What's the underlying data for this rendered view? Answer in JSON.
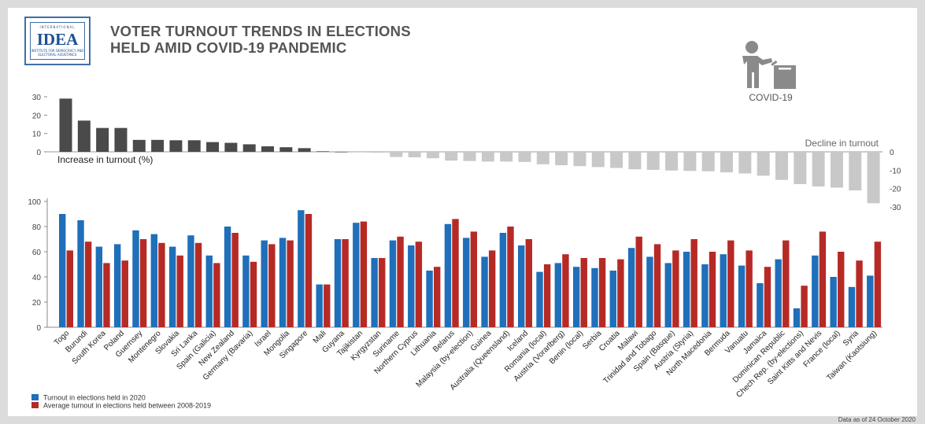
{
  "logo": {
    "top_text": "INTERNATIONAL",
    "main_text": "IDEA",
    "bottom_text": "INSTITUTE FOR DEMOCRACY AND ELECTORAL ASSISTANCE"
  },
  "title_line1": "VOTER TURNOUT TRENDS IN ELECTIONS",
  "title_line2": "HELD AMID COVID-19 PANDEMIC",
  "covid_label": "COVID-19",
  "icon": "voter-ballot-box-icon",
  "footnote": "Data as of 24 October 2020",
  "colors": {
    "turnout_2020": "#1f6fba",
    "average": "#b62a26",
    "increase": "#4a4a4a",
    "decline": "#c8c8c8"
  },
  "chart_data": [
    {
      "type": "bar",
      "label_increase": "Increase in turnout (%)",
      "label_decline": "Decline in turnout",
      "left_ticks": [
        "30",
        "20",
        "10",
        "0"
      ],
      "right_ticks": [
        "0",
        "-10",
        "-20",
        "-30"
      ],
      "ylim": [
        -30,
        30
      ],
      "categories": [
        "Togo",
        "Burundi",
        "South Korea",
        "Poland",
        "Guernsey",
        "Montenegro",
        "Slovakia",
        "Sri Lanka",
        "Spain (Galicia)",
        "New Zealand",
        "Germany (Bavaria)",
        "Israel",
        "Mongolia",
        "Singapore",
        "Mali",
        "Guyana",
        "Tajikistan",
        "Kyrgyzstan",
        "Suriname",
        "Northern Cyprus",
        "Lithuania",
        "Belarus",
        "Malaysia (by-election)",
        "Guinea",
        "Australia (Queensland)",
        "Iceland",
        "Romania (local)",
        "Austria (Vorarlberg)",
        "Benin (local)",
        "Serbia",
        "Croatia",
        "Malawi",
        "Trinidad and Tobago",
        "Spain (Basque)",
        "Austria (Styria)",
        "North Macedonia",
        "Bermuda",
        "Vanuatu",
        "Jamaica",
        "Dominican Republic",
        "Chech Rep. (by-elections)",
        "Saint Kitts and Nevis",
        "France (local)",
        "Syria",
        "Taiwan (Kaotsiung)"
      ],
      "values": [
        29,
        17,
        13,
        13,
        6.5,
        6.5,
        6.3,
        6.3,
        5.3,
        4.9,
        4.1,
        3,
        2.5,
        2,
        0.3,
        0,
        -0.3,
        -0.5,
        -2.8,
        -3,
        -3.5,
        -4.8,
        -5,
        -5.3,
        -5.3,
        -5.5,
        -6.8,
        -7.3,
        -7.8,
        -8.3,
        -8.8,
        -9.5,
        -9.8,
        -10.2,
        -10.4,
        -10.6,
        -11.2,
        -11.8,
        -13,
        -15.3,
        -17.6,
        -18.9,
        -19.5,
        -21,
        -28
      ]
    },
    {
      "type": "bar",
      "ylim": [
        0,
        100
      ],
      "y_ticks": [
        "0",
        "20",
        "40",
        "60",
        "80",
        "100"
      ],
      "categories": [
        "Togo",
        "Burundi",
        "South Korea",
        "Poland",
        "Guernsey",
        "Montenegro",
        "Slovakia",
        "Sri Lanka",
        "Spain (Galicia)",
        "New Zealand",
        "Germany (Bavaria)",
        "Israel",
        "Mongolia",
        "Singapore",
        "Mali",
        "Guyana",
        "Tajikistan",
        "Kyrgyzstan",
        "Suriname",
        "Northern Cyprus",
        "Lithuania",
        "Belarus",
        "Malaysia (by-election)",
        "Guinea",
        "Australia (Queensland)",
        "Iceland",
        "Romania (local)",
        "Austria (Vorarlberg)",
        "Benin (local)",
        "Serbia",
        "Croatia",
        "Malawi",
        "Trinidad and Tobago",
        "Spain (Basque)",
        "Austria (Styria)",
        "North Macedonia",
        "Bermuda",
        "Vanuatu",
        "Jamaica",
        "Dominican Republic",
        "Chech Rep. (by-elections)",
        "Saint Kitts and Nevis",
        "France (local)",
        "Syria",
        "Taiwan (Kaotsiung)"
      ],
      "series": [
        {
          "name": "Turnout in elections held in 2020",
          "values": [
            90,
            85,
            64,
            66,
            77,
            74,
            64,
            73,
            57,
            80,
            57,
            69,
            71,
            93,
            34,
            70,
            83,
            55,
            69,
            65,
            45,
            82,
            71,
            56,
            75,
            65,
            44,
            51,
            48,
            47,
            45,
            63,
            56,
            51,
            60,
            50,
            58,
            49,
            35,
            54,
            15,
            57,
            40,
            32,
            41
          ]
        },
        {
          "name": "Average turnout in elections held between 2008-2019",
          "values": [
            61,
            68,
            51,
            53,
            70,
            67,
            57,
            67,
            51,
            75,
            52,
            66,
            69,
            90,
            34,
            70,
            84,
            55,
            72,
            68,
            48,
            86,
            76,
            61,
            80,
            70,
            50,
            58,
            55,
            55,
            54,
            72,
            66,
            61,
            70,
            60,
            69,
            61,
            48,
            69,
            33,
            76,
            60,
            53,
            68
          ]
        }
      ]
    }
  ]
}
